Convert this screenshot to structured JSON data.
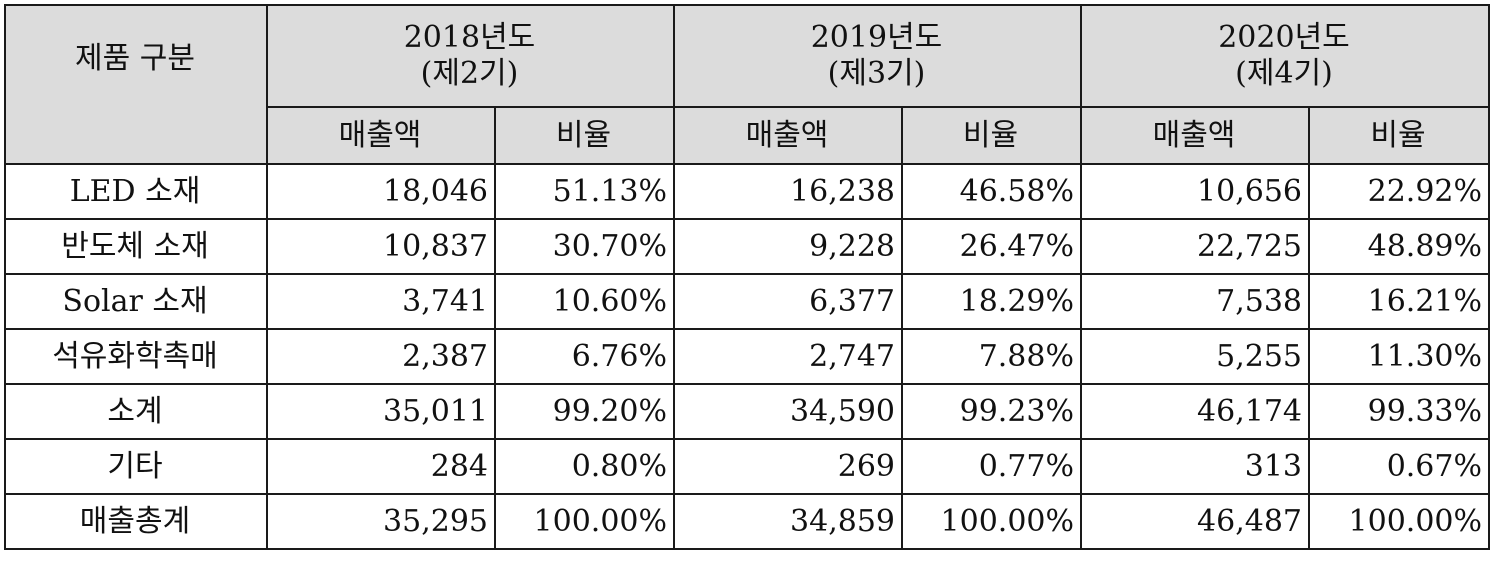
{
  "table": {
    "corner_header": "제품 구분",
    "years": [
      {
        "year": "2018년도",
        "period": "(제2기)"
      },
      {
        "year": "2019년도",
        "period": "(제3기)"
      },
      {
        "year": "2020년도",
        "period": "(제4기)"
      }
    ],
    "sub_headers": {
      "sales": "매출액",
      "ratio": "비율"
    },
    "rows": [
      {
        "label": "LED 소재",
        "values": [
          "18,046",
          "51.13%",
          "16,238",
          "46.58%",
          "10,656",
          "22.92%"
        ]
      },
      {
        "label": "반도체 소재",
        "values": [
          "10,837",
          "30.70%",
          "9,228",
          "26.47%",
          "22,725",
          "48.89%"
        ]
      },
      {
        "label": "Solar 소재",
        "values": [
          "3,741",
          "10.60%",
          "6,377",
          "18.29%",
          "7,538",
          "16.21%"
        ]
      },
      {
        "label": "석유화학촉매",
        "values": [
          "2,387",
          "6.76%",
          "2,747",
          "7.88%",
          "5,255",
          "11.30%"
        ]
      },
      {
        "label": "소계",
        "values": [
          "35,011",
          "99.20%",
          "34,590",
          "99.23%",
          "46,174",
          "99.33%"
        ]
      },
      {
        "label": "기타",
        "values": [
          "284",
          "0.80%",
          "269",
          "0.77%",
          "313",
          "0.67%"
        ]
      },
      {
        "label": "매출총계",
        "values": [
          "35,295",
          "100.00%",
          "34,859",
          "100.00%",
          "46,487",
          "100.00%"
        ]
      }
    ]
  }
}
